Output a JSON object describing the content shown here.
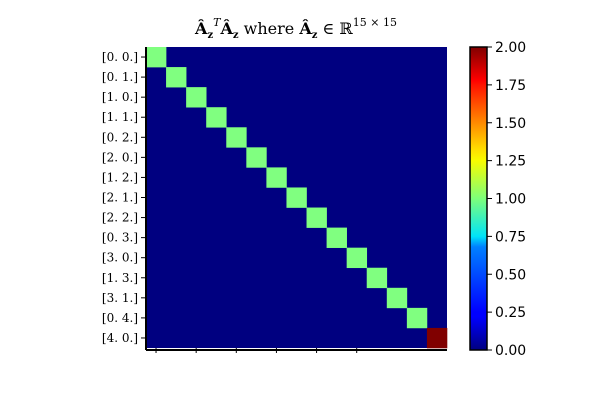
{
  "chart_data": {
    "type": "heatmap",
    "title_parts": {
      "a_hat": "Â",
      "z_sub": "z",
      "t_sup": "T",
      "where": " where ",
      "in": " ∈ ",
      "R": "ℝ",
      "dims": "15 × 15"
    },
    "row_labels": [
      "[0. 0.]",
      "[0. 1.]",
      "[1. 0.]",
      "[1. 1.]",
      "[0. 2.]",
      "[2. 0.]",
      "[1. 2.]",
      "[2. 1.]",
      "[2. 2.]",
      "[0. 3.]",
      "[3. 0.]",
      "[1. 3.]",
      "[3. 1.]",
      "[0. 4.]",
      "[4. 0.]"
    ],
    "x_ticks_labeled": false,
    "x_tick_count": 6,
    "diagonal": [
      1,
      1,
      1,
      1,
      1,
      1,
      1,
      1,
      1,
      1,
      1,
      1,
      1,
      1,
      2
    ],
    "off_diagonal_value": 0,
    "colormap": "jet",
    "vmin": 0.0,
    "vmax": 2.0,
    "colorbar": {
      "ticks": [
        0.0,
        0.25,
        0.5,
        0.75,
        1.0,
        1.25,
        1.5,
        1.75,
        2.0
      ],
      "tick_labels": [
        "0.00",
        "0.25",
        "0.50",
        "0.75",
        "1.00",
        "1.25",
        "1.50",
        "1.75",
        "2.00"
      ],
      "position": "right"
    }
  }
}
